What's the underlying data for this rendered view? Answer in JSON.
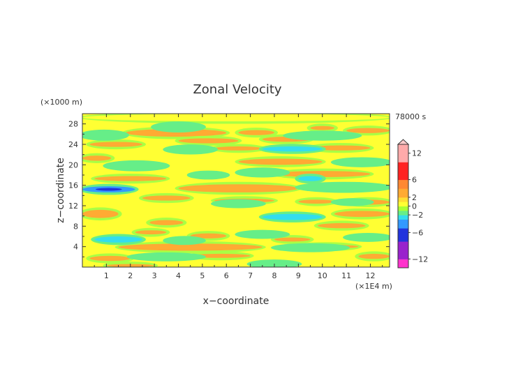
{
  "chart_data": {
    "type": "heatmap",
    "title": "Zonal Velocity",
    "xlabel": "x−coordinate",
    "ylabel": "z−coordinate",
    "x_unit": "(×1E4 m)",
    "y_unit": "(×1000 m)",
    "time_label": "78000 s",
    "xlim": [
      0,
      12.8
    ],
    "ylim": [
      0,
      30
    ],
    "x_ticks": [
      "1",
      "2",
      "3",
      "4",
      "5",
      "6",
      "7",
      "8",
      "9",
      "10",
      "11",
      "12"
    ],
    "y_ticks": [
      "4",
      "8",
      "12",
      "16",
      "20",
      "24",
      "28"
    ],
    "colorbar": {
      "tick_labels": [
        "12",
        "6",
        "2",
        "0",
        "−2",
        "−6",
        "−12"
      ],
      "tick_values": [
        12,
        6,
        2,
        0,
        -2,
        -6,
        -12
      ],
      "range": [
        -14,
        14
      ]
    },
    "bands": [
      {
        "x": [
          0,
          12.8
        ],
        "y": [
          28.5,
          30
        ],
        "value": 0
      },
      {
        "x": [
          1.8,
          6
        ],
        "y": [
          25.5,
          27
        ],
        "value": 2.5
      },
      {
        "x": [
          6.5,
          8
        ],
        "y": [
          25.8,
          26.8
        ],
        "value": 2.5
      },
      {
        "x": [
          9.5,
          10.5
        ],
        "y": [
          26.8,
          27.6
        ],
        "value": 2.5
      },
      {
        "x": [
          11,
          12.8
        ],
        "y": [
          26.2,
          27.2
        ],
        "value": 2.5
      },
      {
        "x": [
          4,
          6.5
        ],
        "y": [
          24.2,
          25.2
        ],
        "value": 2.5
      },
      {
        "x": [
          7.5,
          9.5
        ],
        "y": [
          24.5,
          25.5
        ],
        "value": 2.5
      },
      {
        "x": [
          0.3,
          2.5
        ],
        "y": [
          23.5,
          24.5
        ],
        "value": 2.5
      },
      {
        "x": [
          9.5,
          12
        ],
        "y": [
          22.8,
          23.8
        ],
        "value": 2.5
      },
      {
        "x": [
          5.5,
          7.5
        ],
        "y": [
          22.8,
          23.6
        ],
        "value": 2.5
      },
      {
        "x": [
          0,
          1.2
        ],
        "y": [
          20.8,
          21.8
        ],
        "value": 2.5
      },
      {
        "x": [
          6.5,
          10
        ],
        "y": [
          20,
          21.2
        ],
        "value": 3
      },
      {
        "x": [
          8,
          12
        ],
        "y": [
          17.6,
          18.8
        ],
        "value": 2.5
      },
      {
        "x": [
          0.5,
          3.5
        ],
        "y": [
          16.8,
          17.8
        ],
        "value": 2.5
      },
      {
        "x": [
          4,
          9
        ],
        "y": [
          14.6,
          16.2
        ],
        "value": 3
      },
      {
        "x": [
          2.5,
          4.5
        ],
        "y": [
          13,
          14
        ],
        "value": 2.5
      },
      {
        "x": [
          5.5,
          8
        ],
        "y": [
          12.6,
          13.4
        ],
        "value": 2.5
      },
      {
        "x": [
          9,
          10.5
        ],
        "y": [
          12.4,
          13.2
        ],
        "value": 2.5
      },
      {
        "x": [
          11,
          12.8
        ],
        "y": [
          12.2,
          13.2
        ],
        "value": 2.5
      },
      {
        "x": [
          0,
          1.5
        ],
        "y": [
          9.6,
          11.2
        ],
        "value": 3
      },
      {
        "x": [
          10.5,
          12.8
        ],
        "y": [
          9.8,
          11
        ],
        "value": 2.5
      },
      {
        "x": [
          2.8,
          4.2
        ],
        "y": [
          8.2,
          9.2
        ],
        "value": 2.5
      },
      {
        "x": [
          9.8,
          11.8
        ],
        "y": [
          7.6,
          8.6
        ],
        "value": 2.5
      },
      {
        "x": [
          2.2,
          3.5
        ],
        "y": [
          6.4,
          7.2
        ],
        "value": 2.5
      },
      {
        "x": [
          4.5,
          6
        ],
        "y": [
          5.6,
          6.6
        ],
        "value": 2.5
      },
      {
        "x": [
          8,
          9.5
        ],
        "y": [
          5,
          5.8
        ],
        "value": 2.5
      },
      {
        "x": [
          1.5,
          7.5
        ],
        "y": [
          3.2,
          4.6
        ],
        "value": 3
      },
      {
        "x": [
          8.8,
          11.5
        ],
        "y": [
          3.6,
          4.4
        ],
        "value": 2.5
      },
      {
        "x": [
          0.3,
          2
        ],
        "y": [
          1.2,
          2.2
        ],
        "value": 2.5
      },
      {
        "x": [
          4.5,
          7
        ],
        "y": [
          1.8,
          2.6
        ],
        "value": 2.5
      },
      {
        "x": [
          11.5,
          12.8
        ],
        "y": [
          1.6,
          2.6
        ],
        "value": 2.5
      },
      {
        "x": [
          1,
          3
        ],
        "y": [
          0,
          0.6
        ],
        "value": 2.5
      },
      {
        "x": [
          3,
          5
        ],
        "y": [
          26.8,
          28
        ],
        "value": -2
      },
      {
        "x": [
          0,
          1.8
        ],
        "y": [
          25.2,
          26.4
        ],
        "value": -2
      },
      {
        "x": [
          8.5,
          11.5
        ],
        "y": [
          25.2,
          26.2
        ],
        "value": -2
      },
      {
        "x": [
          3.5,
          5.5
        ],
        "y": [
          22.5,
          23.5
        ],
        "value": -2
      },
      {
        "x": [
          7.5,
          10
        ],
        "y": [
          22.6,
          23.6
        ],
        "value": -2.5
      },
      {
        "x": [
          10.5,
          12.8
        ],
        "y": [
          20,
          21
        ],
        "value": -2
      },
      {
        "x": [
          1,
          3.5
        ],
        "y": [
          19.2,
          20.4
        ],
        "value": -2
      },
      {
        "x": [
          6.5,
          8.5
        ],
        "y": [
          18,
          19
        ],
        "value": -2
      },
      {
        "x": [
          4.5,
          6
        ],
        "y": [
          17.6,
          18.4
        ],
        "value": -2
      },
      {
        "x": [
          9,
          10
        ],
        "y": [
          16.8,
          17.8
        ],
        "value": -2.5
      },
      {
        "x": [
          0,
          2.2
        ],
        "y": [
          14.6,
          15.8
        ],
        "value": -4
      },
      {
        "x": [
          9,
          12.8
        ],
        "y": [
          15,
          16.2
        ],
        "value": -2
      },
      {
        "x": [
          5.5,
          7.5
        ],
        "y": [
          12,
          12.8
        ],
        "value": -2
      },
      {
        "x": [
          7.5,
          10
        ],
        "y": [
          9.2,
          10.4
        ],
        "value": -2.5
      },
      {
        "x": [
          10.5,
          12
        ],
        "y": [
          12.4,
          13
        ],
        "value": -2
      },
      {
        "x": [
          0.5,
          2.5
        ],
        "y": [
          4.8,
          6
        ],
        "value": -2.5
      },
      {
        "x": [
          3.5,
          5
        ],
        "y": [
          4.8,
          5.6
        ],
        "value": -2
      },
      {
        "x": [
          6.5,
          8.5
        ],
        "y": [
          6,
          6.8
        ],
        "value": -2
      },
      {
        "x": [
          8,
          11
        ],
        "y": [
          3.4,
          4.2
        ],
        "value": -2
      },
      {
        "x": [
          2,
          5
        ],
        "y": [
          1.6,
          2.4
        ],
        "value": -2
      },
      {
        "x": [
          7,
          9
        ],
        "y": [
          0.2,
          1
        ],
        "value": -2
      },
      {
        "x": [
          11,
          12.8
        ],
        "y": [
          5.4,
          6.2
        ],
        "value": -2
      }
    ]
  }
}
